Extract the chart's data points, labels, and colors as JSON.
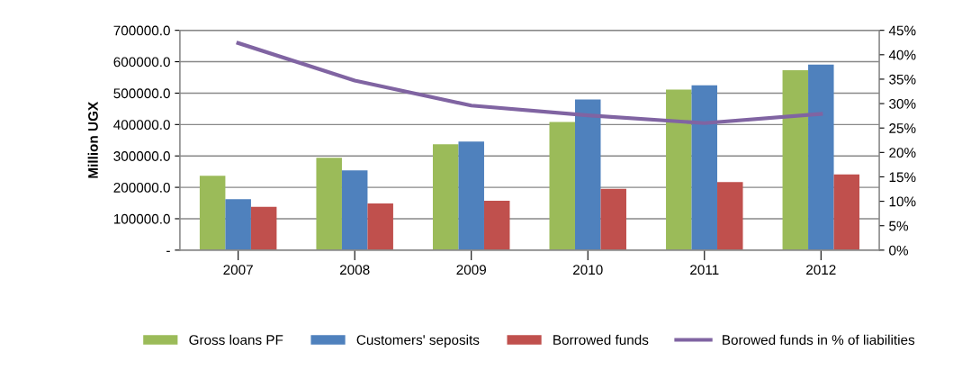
{
  "chart_data": {
    "type": "bar",
    "ylabel": "Million UGX",
    "categories": [
      "2007",
      "2008",
      "2009",
      "2010",
      "2011",
      "2012"
    ],
    "series": [
      {
        "name": "Gross loans PF",
        "color": "#9bbb59",
        "values": [
          237000,
          294000,
          337000,
          408000,
          511000,
          573000
        ]
      },
      {
        "name": "Customers' seposits",
        "color": "#4f81bd",
        "values": [
          162000,
          254000,
          346000,
          480000,
          525000,
          591000
        ]
      },
      {
        "name": "Borrowed funds",
        "color": "#c0504d",
        "values": [
          138000,
          149000,
          157000,
          195000,
          217000,
          241000
        ]
      },
      {
        "name": "Borowed funds in % of liabilities",
        "type": "line",
        "axis": "y2",
        "color": "#8064a2",
        "values": [
          42.4,
          34.7,
          29.6,
          27.6,
          26.0,
          27.9
        ]
      }
    ],
    "ylim": [
      0,
      700000
    ],
    "yticks": [
      {
        "value": 0,
        "label": "-"
      },
      {
        "value": 100000,
        "label": "100000.0"
      },
      {
        "value": 200000,
        "label": "200000.0"
      },
      {
        "value": 300000,
        "label": "300000.0"
      },
      {
        "value": 400000,
        "label": "400000.0"
      },
      {
        "value": 500000,
        "label": "500000.0"
      },
      {
        "value": 600000,
        "label": "600000.0"
      },
      {
        "value": 700000,
        "label": "700000.0"
      }
    ],
    "y2lim": [
      0,
      45
    ],
    "y2ticks": [
      {
        "value": 0,
        "label": "0%"
      },
      {
        "value": 5,
        "label": "5%"
      },
      {
        "value": 10,
        "label": "10%"
      },
      {
        "value": 15,
        "label": "15%"
      },
      {
        "value": 20,
        "label": "20%"
      },
      {
        "value": 25,
        "label": "25%"
      },
      {
        "value": 30,
        "label": "30%"
      },
      {
        "value": 35,
        "label": "35%"
      },
      {
        "value": 40,
        "label": "40%"
      },
      {
        "value": 45,
        "label": "45%"
      }
    ],
    "grid": "y",
    "legend": "bottom"
  }
}
